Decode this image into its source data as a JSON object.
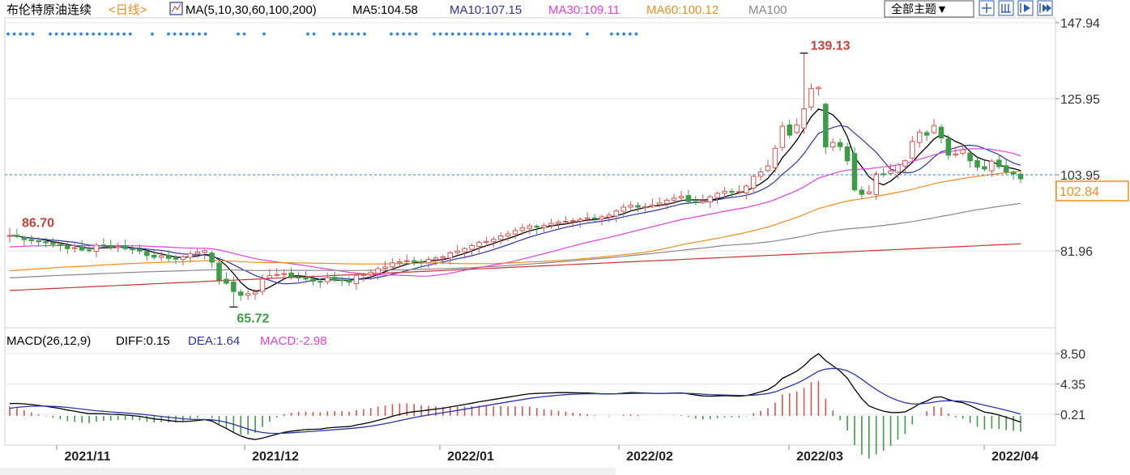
{
  "header": {
    "instrument": "布伦特原油连续",
    "period": "<日线>",
    "ma_label": "MA(5,10,30,60,100,200)",
    "ma5": "MA5:104.58",
    "ma10": "MA10:107.15",
    "ma30": "MA30:109.11",
    "ma60": "MA60:100.12",
    "ma100": "MA100",
    "theme_button": "全部主题▼"
  },
  "toolbar_icons": [
    "crosshair-icon",
    "zoom-in-icon",
    "play-icon",
    "fast-forward-icon"
  ],
  "macd_header": {
    "label": "MACD(26,12,9)",
    "diff": "DIFF:0.15",
    "dea": "DEA:1.64",
    "macd": "MACD:-2.98"
  },
  "price_panel": {
    "ylim": [
      62,
      150
    ],
    "ticks": [
      "147.94",
      "125.95",
      "103.95",
      "81.96"
    ],
    "current_price": "102.84",
    "annotations": {
      "high": "139.13",
      "low": "65.72",
      "left": "86.70"
    }
  },
  "macd_panel": {
    "ylim": [
      -6,
      10
    ],
    "ticks": [
      "8.50",
      "4.35",
      "0.21"
    ]
  },
  "x_axis_labels": [
    "2021/11",
    "2021/12",
    "2022/01",
    "2022/02",
    "2022/03",
    "2022/04"
  ],
  "colors": {
    "up": "#d9534f",
    "down": "#3e9b47",
    "ma5": "#000000",
    "ma10": "#2a33a8",
    "ma30": "#e040e0",
    "ma60": "#f08c1e",
    "ma100": "#888888",
    "ma200": "#c83232",
    "grid": "#e6e6e6",
    "dotted": "#2e86de"
  },
  "chart_data": [
    {
      "type": "candlestick",
      "title": "布伦特原油连续 日线",
      "x_axis_labels": [
        "2021/11",
        "2021/12",
        "2022/01",
        "2022/02",
        "2022/03",
        "2022/04"
      ],
      "ylim": [
        62,
        150
      ],
      "closes": [
        86.4,
        86.1,
        85.2,
        84.9,
        84.6,
        84.3,
        83.9,
        83.6,
        82.6,
        82.9,
        82.2,
        82.1,
        83.6,
        83.4,
        82.9,
        83.2,
        82.6,
        82.3,
        81.9,
        80.6,
        80.1,
        80.6,
        79.8,
        79.6,
        80.2,
        81.1,
        81.6,
        82.0,
        78.7,
        73.5,
        72.6,
        70.2,
        69.1,
        69.6,
        70.1,
        73.8,
        74.8,
        75.1,
        75.4,
        74.4,
        74.1,
        73.8,
        73.2,
        72.9,
        74.2,
        73.6,
        73.4,
        72.9,
        74.9,
        75.1,
        75.7,
        76.8,
        77.3,
        78.5,
        78.8,
        79.1,
        78.9,
        78.6,
        79.5,
        79.9,
        80.2,
        81.4,
        81.9,
        82.6,
        83.5,
        84.4,
        84.7,
        85.3,
        86.3,
        86.9,
        87.8,
        88.6,
        89.2,
        88.8,
        89.3,
        89.9,
        90.3,
        90.5,
        90.7,
        91.1,
        91.5,
        91.3,
        91.8,
        92.3,
        93.5,
        94.6,
        95.1,
        94.6,
        94.7,
        95.2,
        95.8,
        96.6,
        97.2,
        97.7,
        96.2,
        95.9,
        96.4,
        97.6,
        98.6,
        99.2,
        98.9,
        99.1,
        100.7,
        103.5,
        104.8,
        106.5,
        111.6,
        118.0,
        115.4,
        118.3,
        123.0,
        128.9,
        129.2,
        112.0,
        113.3,
        112.1,
        108.0,
        99.6,
        98.3,
        99.0,
        104.2,
        104.0,
        105.1,
        106.8,
        108.0,
        113.6,
        116.3,
        115.4,
        118.2,
        114.6,
        109.6,
        110.0,
        111.2,
        108.0,
        106.2,
        105.6,
        107.9,
        106.3,
        104.8,
        104.2,
        102.8
      ],
      "high": 139.13,
      "low": 65.72,
      "last": 102.84,
      "series": [
        {
          "name": "MA5",
          "latest": 104.58
        },
        {
          "name": "MA10",
          "latest": 107.15
        },
        {
          "name": "MA30",
          "latest": 109.11
        },
        {
          "name": "MA60",
          "latest": 100.12
        },
        {
          "name": "MA100"
        }
      ]
    },
    {
      "type": "line",
      "title": "MACD(26,12,9)",
      "ylim": [
        -6,
        10
      ],
      "series": [
        {
          "name": "DIFF",
          "latest": 0.15
        },
        {
          "name": "DEA",
          "latest": 1.64
        },
        {
          "name": "MACD",
          "latest": -2.98
        }
      ]
    }
  ]
}
